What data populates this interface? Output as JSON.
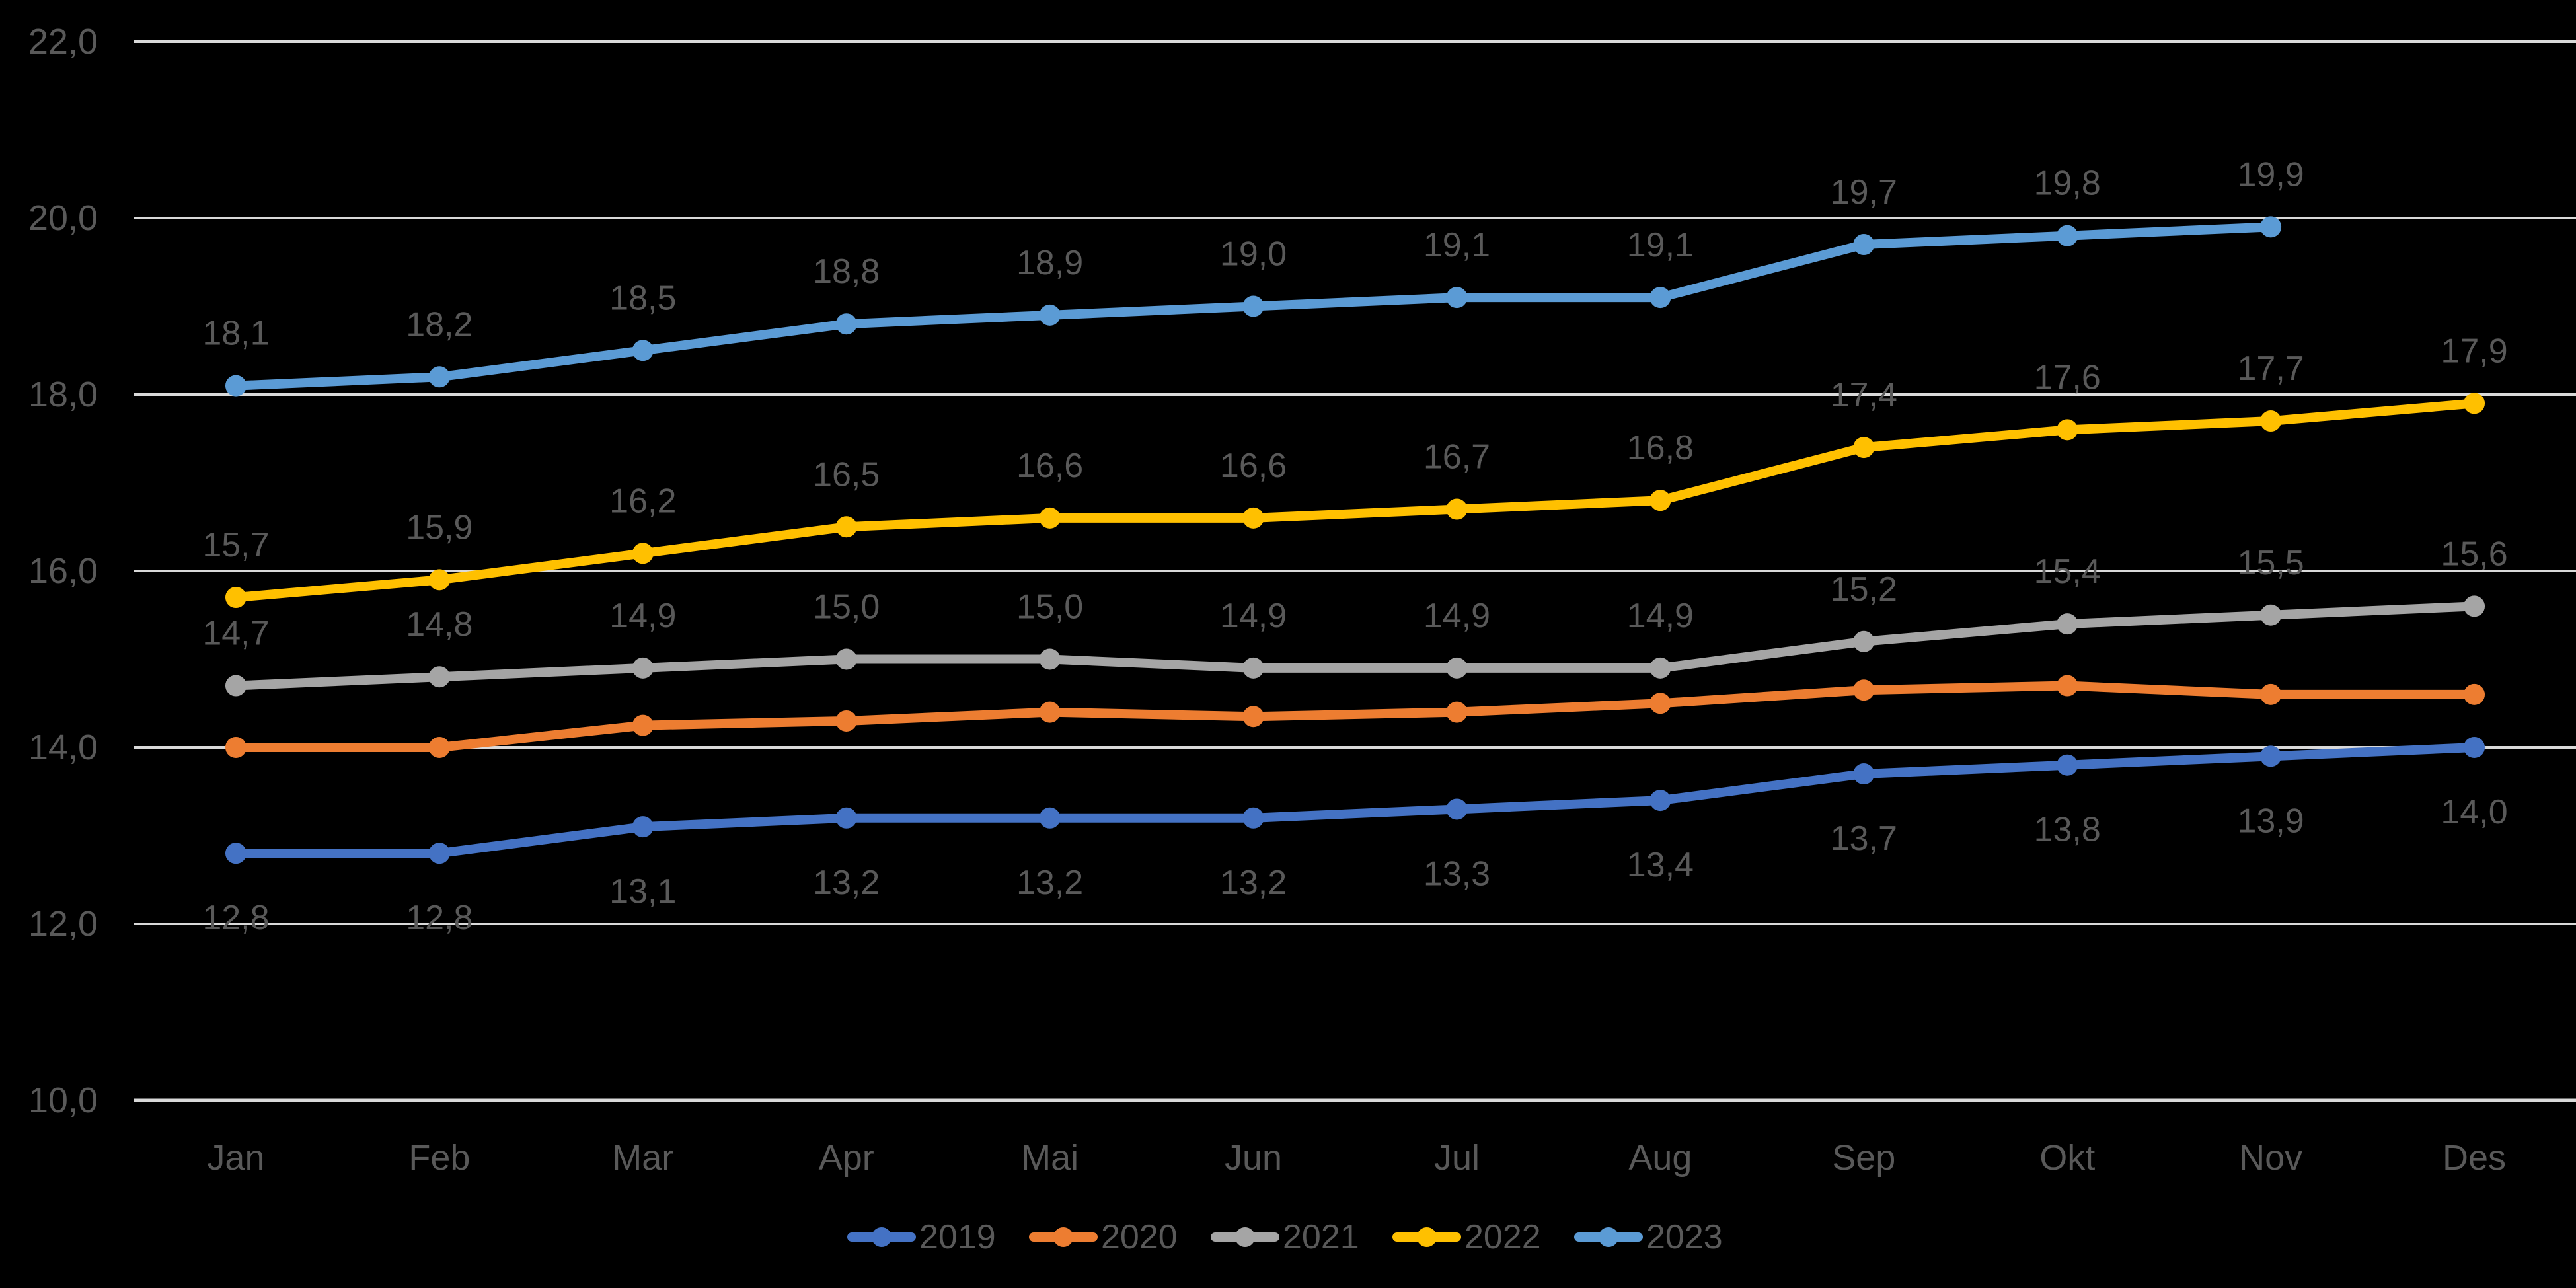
{
  "chart_data": {
    "type": "line",
    "title": "",
    "categories": [
      "Jan",
      "Feb",
      "Mar",
      "Apr",
      "Mai",
      "Jun",
      "Jul",
      "Aug",
      "Sep",
      "Okt",
      "Nov",
      "Des"
    ],
    "y_axis": {
      "min": 10,
      "max": 22,
      "step": 2,
      "tick_labels": [
        "22,0",
        "20,0",
        "18,0",
        "16,0",
        "14,0",
        "12,0",
        "10,0"
      ],
      "tick_values": [
        22,
        20,
        18,
        16,
        14,
        12,
        10
      ]
    },
    "grid": true,
    "legend_position": "bottom",
    "background_color": "#000000",
    "text_color": "#595959",
    "gridline_color": "#D9D9D9",
    "decimal_separator": ",",
    "series": [
      {
        "name": "2019",
        "color": "#4472C4",
        "values": [
          12.8,
          12.8,
          13.1,
          13.2,
          13.2,
          13.2,
          13.3,
          13.4,
          13.7,
          13.8,
          13.9,
          14.0
        ],
        "labels": [
          "12,8",
          "12,8",
          "13,1",
          "13,2",
          "13,2",
          "13,2",
          "13,3",
          "13,4",
          "13,7",
          "13,8",
          "13,9",
          "14,0"
        ],
        "label_position": "below"
      },
      {
        "name": "2020",
        "color": "#ED7D31",
        "values": [
          14.0,
          14.0,
          14.25,
          14.3,
          14.4,
          14.35,
          14.4,
          14.5,
          14.65,
          14.7,
          14.6,
          14.6
        ],
        "labels": [],
        "label_position": "none"
      },
      {
        "name": "2021",
        "color": "#A5A5A5",
        "values": [
          14.7,
          14.8,
          14.9,
          15.0,
          15.0,
          14.9,
          14.9,
          14.9,
          15.2,
          15.4,
          15.5,
          15.6
        ],
        "labels": [
          "14,7",
          "14,8",
          "14,9",
          "15,0",
          "15,0",
          "14,9",
          "14,9",
          "14,9",
          "15,2",
          "15,4",
          "15,5",
          "15,6"
        ],
        "label_position": "above"
      },
      {
        "name": "2022",
        "color": "#FFC000",
        "values": [
          15.7,
          15.9,
          16.2,
          16.5,
          16.6,
          16.6,
          16.7,
          16.8,
          17.4,
          17.6,
          17.7,
          17.9
        ],
        "labels": [
          "15,7",
          "15,9",
          "16,2",
          "16,5",
          "16,6",
          "16,6",
          "16,7",
          "16,8",
          "17,4",
          "17,6",
          "17,7",
          "17,9"
        ],
        "label_position": "above"
      },
      {
        "name": "2023",
        "color": "#5B9BD5",
        "values": [
          18.1,
          18.2,
          18.5,
          18.8,
          18.9,
          19.0,
          19.1,
          19.1,
          19.7,
          19.8,
          19.9,
          null
        ],
        "labels": [
          "18,1",
          "18,2",
          "18,5",
          "18,8",
          "18,9",
          "19,0",
          "19,1",
          "19,1",
          "19,7",
          "19,8",
          "19,9"
        ],
        "label_position": "above"
      }
    ],
    "legend": [
      "2019",
      "2020",
      "2021",
      "2022",
      "2023"
    ]
  }
}
